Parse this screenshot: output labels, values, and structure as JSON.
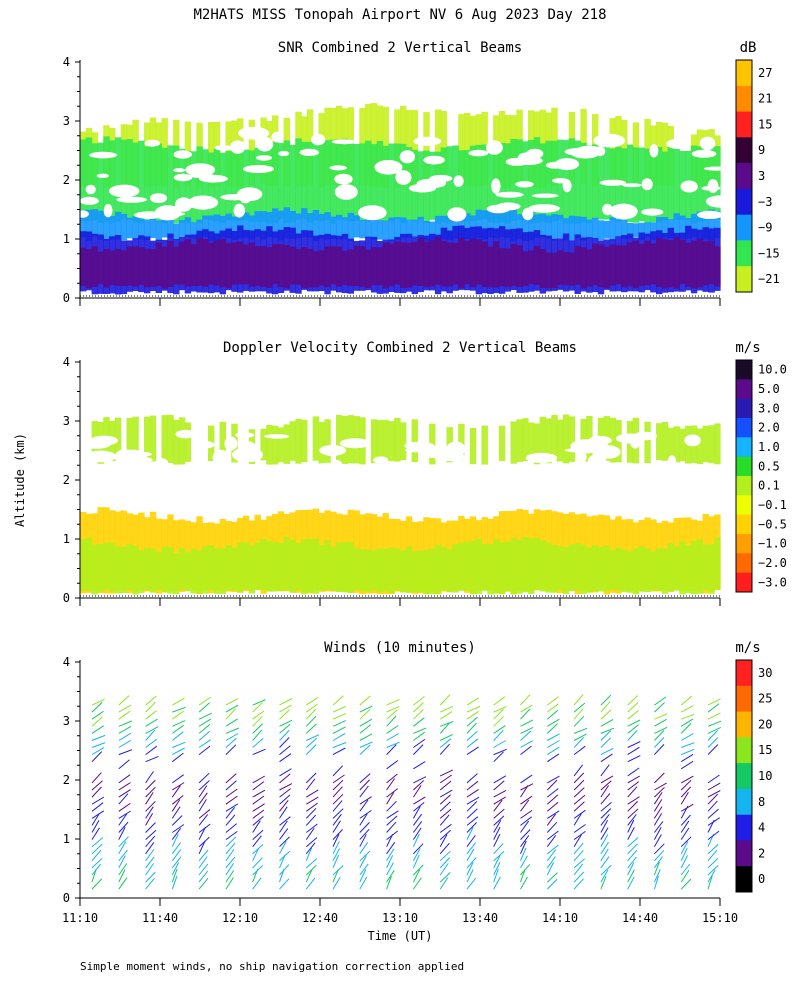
{
  "header": {
    "title": "M2HATS MISS Tonopah Airport NV   6 Aug 2023 Day 218"
  },
  "footer": {
    "note": "Simple moment winds, no ship navigation correction applied"
  },
  "chart_data": [
    {
      "type": "heatmap",
      "title": "SNR Combined 2 Vertical Beams",
      "ylabel": "",
      "xlim": [
        "11:10",
        "15:10"
      ],
      "ylim": [
        0,
        4
      ],
      "y_ticks": [
        "0",
        "1",
        "2",
        "3",
        "4"
      ],
      "colorbar": {
        "unit": "dB",
        "labels": [
          "27",
          "21",
          "15",
          "9",
          "3",
          "−3",
          "−9",
          "−15",
          "−21"
        ],
        "colors": [
          "#ffc400",
          "#ff8c00",
          "#ff2020",
          "#330033",
          "#5a0a8a",
          "#1a1adc",
          "#1496ff",
          "#32e650",
          "#c8f01e"
        ]
      },
      "layers": [
        {
          "z": -21,
          "bottom": 1.9,
          "top": 3.0,
          "note": "sparse upper layer"
        },
        {
          "z": -15,
          "bottom": 1.3,
          "top": 2.6
        },
        {
          "z": -12,
          "bottom": 1.0,
          "top": 1.4
        },
        {
          "z": -6,
          "bottom": 0.1,
          "top": 1.1
        },
        {
          "z": 0,
          "bottom": 0.2,
          "top": 0.9
        }
      ]
    },
    {
      "type": "heatmap",
      "title": "Doppler Velocity Combined 2 Vertical Beams",
      "ylabel": "Altitude (km)",
      "xlim": [
        "11:10",
        "15:10"
      ],
      "ylim": [
        0,
        4
      ],
      "y_ticks": [
        "0",
        "1",
        "2",
        "3",
        "4"
      ],
      "colorbar": {
        "unit": "m/s",
        "labels": [
          "10.0",
          "5.0",
          "3.0",
          "2.0",
          "1.0",
          "0.5",
          "0.1",
          "−0.1",
          "−0.5",
          "−1.0",
          "−2.0",
          "−3.0"
        ],
        "colors": [
          "#1a0a2a",
          "#5a0a8a",
          "#2a1ab4",
          "#1450ff",
          "#14b4ff",
          "#28dc28",
          "#b4f01e",
          "#f0ff00",
          "#ffd200",
          "#ffa000",
          "#ff6a00",
          "#ff1e1e"
        ]
      },
      "layers": [
        {
          "z": 0.3,
          "bottom": 2.3,
          "top": 3.0
        },
        {
          "z": -0.5,
          "bottom": 0.1,
          "top": 1.4
        },
        {
          "z": 0.05,
          "bottom": 0.1,
          "top": 0.9
        }
      ]
    },
    {
      "type": "scatter",
      "title": "Winds (10 minutes)",
      "xlabel": "Time (UT)",
      "xlim": [
        "11:10",
        "15:10"
      ],
      "ylim": [
        0,
        4
      ],
      "x_ticks": [
        "11:10",
        "11:40",
        "12:10",
        "12:40",
        "13:10",
        "13:40",
        "14:10",
        "14:40",
        "15:10"
      ],
      "y_ticks": [
        "0",
        "1",
        "2",
        "3",
        "4"
      ],
      "colorbar": {
        "unit": "m/s",
        "labels": [
          "30",
          "25",
          "20",
          "15",
          "10",
          "8",
          "4",
          "2",
          "0"
        ],
        "colors": [
          "#ff2020",
          "#ff6a00",
          "#ffb400",
          "#8ce61e",
          "#14c864",
          "#14b4f0",
          "#1e1ee6",
          "#5a0a8a",
          "#000000"
        ]
      },
      "profile_times": [
        "11:10",
        "11:20",
        "11:30",
        "11:40",
        "11:50",
        "12:00",
        "12:10",
        "12:20",
        "12:30",
        "12:40",
        "12:50",
        "13:00",
        "13:10",
        "13:20",
        "13:30",
        "13:40",
        "13:50",
        "14:00",
        "14:10",
        "14:20",
        "14:30",
        "14:40",
        "14:50",
        "15:00"
      ],
      "wind_speed_profile": [
        {
          "altitude": 0.3,
          "speed": 9
        },
        {
          "altitude": 0.8,
          "speed": 6
        },
        {
          "altitude": 1.2,
          "speed": 4
        },
        {
          "altitude": 1.8,
          "speed": 2
        },
        {
          "altitude": 2.5,
          "speed": 6
        },
        {
          "altitude": 3.0,
          "speed": 13
        }
      ]
    }
  ]
}
